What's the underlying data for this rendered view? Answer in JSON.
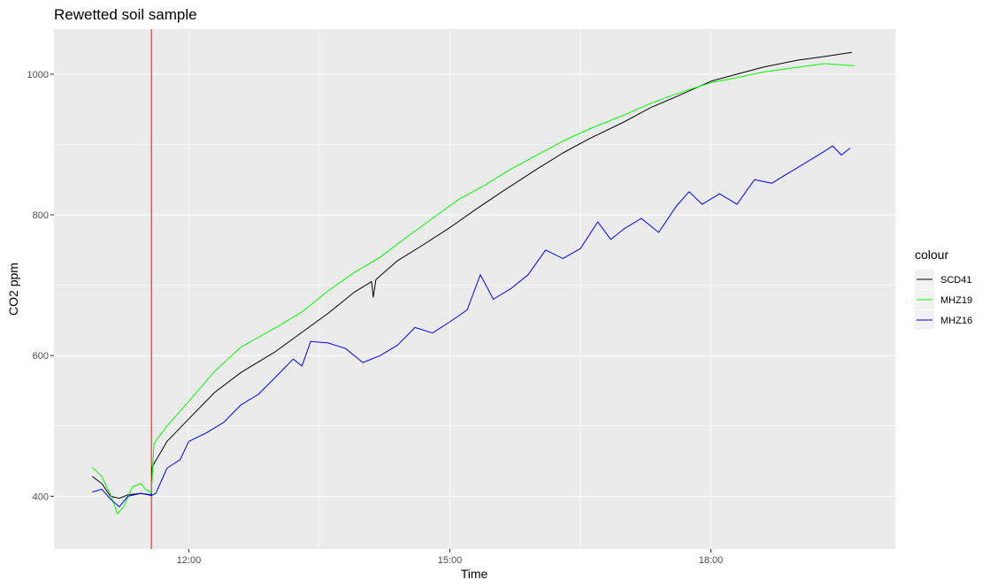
{
  "chart_data": {
    "type": "line",
    "title": "Rewetted soil sample",
    "xlabel": "Time",
    "ylabel": "CO2 ppm",
    "x_unit": "clock time (hours)",
    "xlim": [
      10.45,
      20.12
    ],
    "ylim": [
      325,
      1064
    ],
    "x_ticks": [
      {
        "value": 12,
        "label": "12:00"
      },
      {
        "value": 15,
        "label": "15:00"
      },
      {
        "value": 18,
        "label": "18:00"
      }
    ],
    "y_ticks": [
      {
        "value": 400,
        "label": "400"
      },
      {
        "value": 600,
        "label": "600"
      },
      {
        "value": 800,
        "label": "800"
      },
      {
        "value": 1000,
        "label": "1000"
      }
    ],
    "grid": true,
    "vline": {
      "x": 11.57,
      "color": "#ff0000"
    },
    "legend": {
      "title": "colour",
      "position": "right"
    },
    "series": [
      {
        "name": "SCD41",
        "color": "#000000",
        "points": [
          [
            10.89,
            428
          ],
          [
            11.0,
            418
          ],
          [
            11.1,
            400
          ],
          [
            11.2,
            397
          ],
          [
            11.3,
            402
          ],
          [
            11.45,
            404
          ],
          [
            11.57,
            402
          ],
          [
            11.58,
            442
          ],
          [
            11.75,
            478
          ],
          [
            12.0,
            510
          ],
          [
            12.3,
            548
          ],
          [
            12.6,
            576
          ],
          [
            13.0,
            606
          ],
          [
            13.3,
            633
          ],
          [
            13.6,
            660
          ],
          [
            13.9,
            690
          ],
          [
            14.1,
            705
          ],
          [
            14.12,
            683
          ],
          [
            14.15,
            708
          ],
          [
            14.4,
            735
          ],
          [
            14.7,
            758
          ],
          [
            15.0,
            782
          ],
          [
            15.3,
            808
          ],
          [
            15.6,
            833
          ],
          [
            16.0,
            865
          ],
          [
            16.3,
            888
          ],
          [
            16.6,
            908
          ],
          [
            17.0,
            932
          ],
          [
            17.3,
            952
          ],
          [
            17.6,
            968
          ],
          [
            18.0,
            990
          ],
          [
            18.3,
            1000
          ],
          [
            18.6,
            1010
          ],
          [
            19.0,
            1020
          ],
          [
            19.3,
            1025
          ],
          [
            19.62,
            1031
          ]
        ]
      },
      {
        "name": "MHZ19",
        "color": "#00ff00",
        "points": [
          [
            10.89,
            441
          ],
          [
            11.0,
            428
          ],
          [
            11.1,
            402
          ],
          [
            11.18,
            375
          ],
          [
            11.25,
            385
          ],
          [
            11.35,
            413
          ],
          [
            11.45,
            418
          ],
          [
            11.5,
            410
          ],
          [
            11.57,
            405
          ],
          [
            11.6,
            475
          ],
          [
            11.75,
            500
          ],
          [
            12.0,
            535
          ],
          [
            12.3,
            578
          ],
          [
            12.6,
            612
          ],
          [
            13.0,
            640
          ],
          [
            13.3,
            662
          ],
          [
            13.6,
            692
          ],
          [
            13.9,
            718
          ],
          [
            14.2,
            740
          ],
          [
            14.5,
            768
          ],
          [
            14.8,
            795
          ],
          [
            15.1,
            822
          ],
          [
            15.4,
            842
          ],
          [
            15.7,
            865
          ],
          [
            16.0,
            885
          ],
          [
            16.3,
            905
          ],
          [
            16.6,
            922
          ],
          [
            17.0,
            942
          ],
          [
            17.3,
            958
          ],
          [
            17.6,
            972
          ],
          [
            18.0,
            988
          ],
          [
            18.3,
            995
          ],
          [
            18.6,
            1003
          ],
          [
            19.0,
            1010
          ],
          [
            19.3,
            1015
          ],
          [
            19.65,
            1012
          ]
        ]
      },
      {
        "name": "MHZ16",
        "color": "#0000ff",
        "points": [
          [
            10.89,
            406
          ],
          [
            11.0,
            410
          ],
          [
            11.1,
            396
          ],
          [
            11.2,
            385
          ],
          [
            11.3,
            400
          ],
          [
            11.45,
            404
          ],
          [
            11.57,
            401
          ],
          [
            11.62,
            404
          ],
          [
            11.75,
            440
          ],
          [
            11.9,
            452
          ],
          [
            12.0,
            478
          ],
          [
            12.2,
            490
          ],
          [
            12.4,
            505
          ],
          [
            12.6,
            530
          ],
          [
            12.8,
            545
          ],
          [
            13.0,
            570
          ],
          [
            13.2,
            595
          ],
          [
            13.3,
            585
          ],
          [
            13.4,
            620
          ],
          [
            13.6,
            618
          ],
          [
            13.8,
            610
          ],
          [
            14.0,
            590
          ],
          [
            14.2,
            600
          ],
          [
            14.4,
            615
          ],
          [
            14.6,
            640
          ],
          [
            14.8,
            632
          ],
          [
            15.0,
            648
          ],
          [
            15.2,
            665
          ],
          [
            15.35,
            715
          ],
          [
            15.5,
            680
          ],
          [
            15.7,
            695
          ],
          [
            15.9,
            715
          ],
          [
            16.1,
            750
          ],
          [
            16.3,
            738
          ],
          [
            16.5,
            752
          ],
          [
            16.7,
            790
          ],
          [
            16.85,
            765
          ],
          [
            17.0,
            780
          ],
          [
            17.2,
            795
          ],
          [
            17.4,
            775
          ],
          [
            17.6,
            812
          ],
          [
            17.75,
            833
          ],
          [
            17.9,
            815
          ],
          [
            18.1,
            830
          ],
          [
            18.3,
            815
          ],
          [
            18.5,
            850
          ],
          [
            18.7,
            845
          ],
          [
            18.9,
            860
          ],
          [
            19.1,
            875
          ],
          [
            19.3,
            890
          ],
          [
            19.4,
            898
          ],
          [
            19.5,
            885
          ],
          [
            19.6,
            895
          ]
        ]
      }
    ]
  }
}
